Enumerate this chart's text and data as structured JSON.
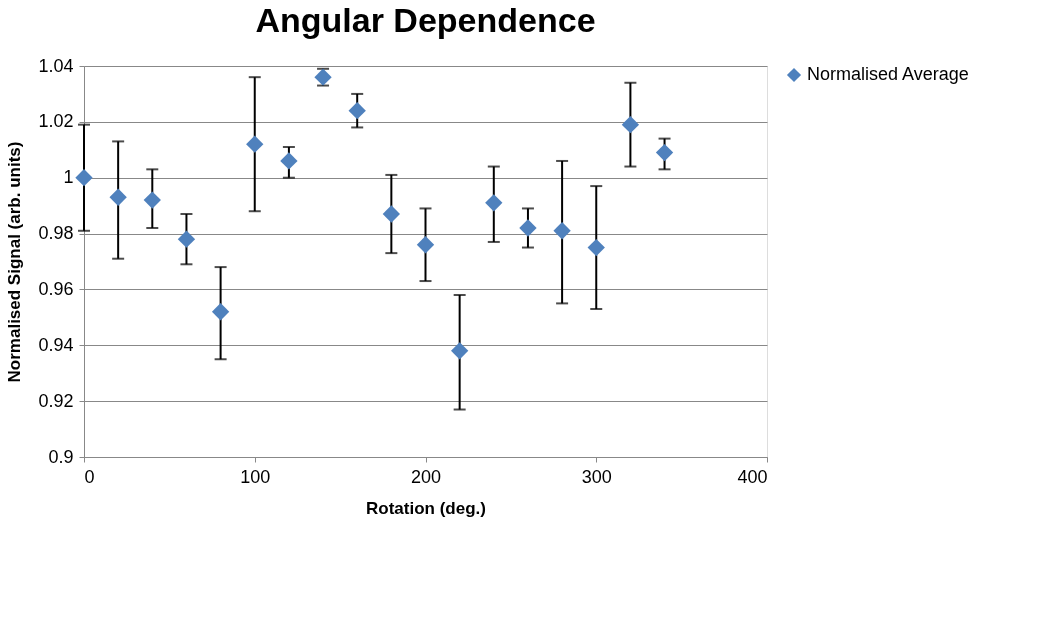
{
  "chart_data": {
    "type": "scatter",
    "title": "Angular Dependence",
    "xlabel": "Rotation (deg.)",
    "ylabel": "Normalised Signal (arb. units)",
    "x": [
      0,
      20,
      40,
      60,
      80,
      100,
      120,
      140,
      160,
      180,
      200,
      220,
      240,
      260,
      280,
      300,
      320,
      340
    ],
    "series": [
      {
        "name": "Normalised Average",
        "color": "#4f81bd",
        "values": [
          1.0,
          0.993,
          0.992,
          0.978,
          0.952,
          1.012,
          1.006,
          1.036,
          1.024,
          0.987,
          0.976,
          0.938,
          0.991,
          0.982,
          0.981,
          0.975,
          1.019,
          1.009
        ],
        "errors": [
          [
            0.981,
            1.019
          ],
          [
            0.971,
            1.013
          ],
          [
            0.982,
            1.003
          ],
          [
            0.969,
            0.987
          ],
          [
            0.935,
            0.968
          ],
          [
            0.988,
            1.036
          ],
          [
            1.0,
            1.011
          ],
          [
            1.033,
            1.039
          ],
          [
            1.018,
            1.03
          ],
          [
            0.973,
            1.001
          ],
          [
            0.963,
            0.989
          ],
          [
            0.917,
            0.958
          ],
          [
            0.977,
            1.004
          ],
          [
            0.975,
            0.989
          ],
          [
            0.955,
            1.006
          ],
          [
            0.953,
            0.997
          ],
          [
            1.004,
            1.034
          ],
          [
            1.003,
            1.014
          ]
        ]
      }
    ],
    "xlim": [
      0,
      400
    ],
    "xticks": [
      0,
      100,
      200,
      300,
      400
    ],
    "ylim": [
      0.9,
      1.04
    ],
    "yticks": [
      {
        "value": 0.9,
        "label": "0.9"
      },
      0.92,
      0.94,
      0.96,
      0.98,
      {
        "value": 1,
        "label": "1"
      },
      1.02,
      1.04
    ],
    "grid": "y",
    "legend": "right",
    "marker": "diamond"
  }
}
